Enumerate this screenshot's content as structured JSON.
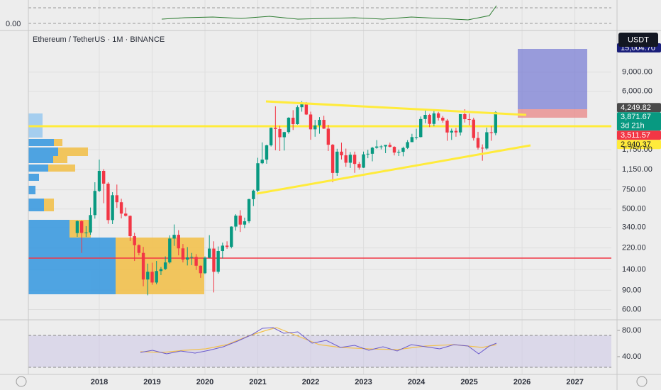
{
  "chart_data": {
    "type": "candlestick",
    "title": "Ethereum / TetherUS · 1M · BINANCE",
    "log_scale": true,
    "grid": true,
    "up_color": "#089981",
    "down_color": "#f23645",
    "xlim": [
      2016.658,
      2027.69
    ],
    "xticks": [
      2018,
      2019,
      2020,
      2021,
      2022,
      2023,
      2024,
      2025,
      2026,
      2027
    ],
    "ylim": [
      49,
      21000
    ],
    "yticks": [
      {
        "value": 9000,
        "label": "9,000.00"
      },
      {
        "value": 6000,
        "label": "6,000.00"
      },
      {
        "value": 1750,
        "label": "1,750.00"
      },
      {
        "value": 1150,
        "label": "1,150.00"
      },
      {
        "value": 750,
        "label": "750.00"
      },
      {
        "value": 500,
        "label": "500.00"
      },
      {
        "value": 340,
        "label": "340.00"
      },
      {
        "value": 220,
        "label": "220.00"
      },
      {
        "value": 140,
        "label": "140.00"
      },
      {
        "value": 90,
        "label": "90.00"
      },
      {
        "value": 60,
        "label": "60.00"
      }
    ],
    "x": [
      2017.583,
      2017.667,
      2017.75,
      2017.833,
      2017.917,
      2018,
      2018.083,
      2018.167,
      2018.25,
      2018.333,
      2018.417,
      2018.5,
      2018.583,
      2018.667,
      2018.75,
      2018.833,
      2018.917,
      2019,
      2019.083,
      2019.167,
      2019.25,
      2019.333,
      2019.417,
      2019.5,
      2019.583,
      2019.667,
      2019.75,
      2019.833,
      2019.917,
      2020,
      2020.083,
      2020.167,
      2020.25,
      2020.333,
      2020.417,
      2020.5,
      2020.583,
      2020.667,
      2020.75,
      2020.833,
      2020.917,
      2021,
      2021.083,
      2021.167,
      2021.25,
      2021.333,
      2021.417,
      2021.5,
      2021.583,
      2021.667,
      2021.75,
      2021.833,
      2021.917,
      2022,
      2022.083,
      2022.167,
      2022.25,
      2022.333,
      2022.417,
      2022.5,
      2022.583,
      2022.667,
      2022.75,
      2022.833,
      2022.917,
      2023,
      2023.083,
      2023.167,
      2023.25,
      2023.333,
      2023.417,
      2023.5,
      2023.583,
      2023.667,
      2023.75,
      2023.833,
      2023.917,
      2024,
      2024.083,
      2024.167,
      2024.25,
      2024.333,
      2024.417,
      2024.5,
      2024.583,
      2024.667,
      2024.75,
      2024.833,
      2024.917,
      2025,
      2025.083,
      2025.167,
      2025.25,
      2025.333,
      2025.417,
      2025.5
    ],
    "open": [
      301,
      387,
      302,
      305,
      440,
      733,
      1118,
      854,
      396,
      669,
      577,
      454,
      433,
      282,
      233,
      198,
      113,
      133,
      106,
      135,
      141,
      162,
      268,
      290,
      218,
      172,
      180,
      182,
      151,
      129,
      179,
      217,
      133,
      206,
      231,
      225,
      345,
      435,
      360,
      386,
      616,
      737,
      1314,
      1418,
      1918,
      2772,
      2706,
      2275,
      2536,
      3433,
      3001,
      4287,
      4631,
      3676,
      2688,
      2919,
      3282,
      2726,
      1941,
      1071,
      1678,
      1553,
      1328,
      1572,
      1295,
      1196,
      1585,
      1605,
      1822,
      1870,
      1874,
      1934,
      1857,
      1645,
      1671,
      1815,
      2052,
      2282,
      2283,
      3340,
      3645,
      3014,
      3763,
      3433,
      3232,
      2513,
      2602,
      2518,
      3704,
      3332,
      3300,
      2237,
      1822,
      1793,
      2528,
      2486
    ],
    "high": [
      393,
      394,
      348,
      516,
      880,
      1420,
      1160,
      880,
      713,
      838,
      621,
      516,
      436,
      303,
      237,
      225,
      158,
      161,
      167,
      147,
      184,
      287,
      361,
      320,
      239,
      224,
      198,
      193,
      152,
      184,
      288,
      253,
      227,
      246,
      253,
      347,
      448,
      488,
      417,
      622,
      752,
      1475,
      2041,
      1944,
      2796,
      4372,
      2890,
      2551,
      3473,
      4027,
      4460,
      4868,
      4778,
      3900,
      3285,
      3479,
      3580,
      2955,
      1972,
      1784,
      2030,
      1790,
      1664,
      1679,
      1352,
      1680,
      1743,
      1857,
      2141,
      1929,
      1930,
      2030,
      1880,
      1752,
      1865,
      2138,
      2445,
      2718,
      3522,
      4093,
      3730,
      3977,
      3887,
      3563,
      3341,
      2730,
      2772,
      3685,
      4109,
      3744,
      3436,
      2549,
      1956,
      2788,
      2880,
      3940
    ],
    "low": [
      278,
      198,
      277,
      290,
      408,
      715,
      565,
      366,
      364,
      512,
      410,
      427,
      254,
      167,
      188,
      98,
      81,
      101,
      102,
      124,
      138,
      158,
      230,
      188,
      162,
      152,
      153,
      138,
      117,
      127,
      177,
      86,
      128,
      176,
      216,
      218,
      317,
      308,
      334,
      371,
      532,
      715,
      1290,
      1300,
      1870,
      1728,
      1700,
      1718,
      2450,
      2651,
      2970,
      3900,
      3640,
      2159,
      2300,
      2450,
      2711,
      1700,
      880,
      1007,
      1422,
      1220,
      1190,
      1073,
      1150,
      1190,
      1461,
      1368,
      1785,
      1760,
      1626,
      1836,
      1550,
      1531,
      1521,
      1775,
      2050,
      2167,
      2265,
      3057,
      2817,
      2865,
      3237,
      3087,
      2111,
      2150,
      2300,
      2357,
      3100,
      2920,
      2120,
      1754,
      1385,
      1750,
      2111,
      2373
    ],
    "close": [
      387,
      302,
      305,
      440,
      733,
      1118,
      854,
      396,
      669,
      577,
      454,
      433,
      282,
      233,
      198,
      113,
      133,
      106,
      135,
      141,
      162,
      268,
      290,
      218,
      172,
      180,
      182,
      151,
      129,
      179,
      217,
      133,
      206,
      231,
      225,
      345,
      435,
      360,
      386,
      616,
      737,
      1314,
      1418,
      1918,
      2772,
      2706,
      2275,
      2536,
      3433,
      3001,
      4287,
      4631,
      3676,
      2688,
      2919,
      3282,
      2726,
      1941,
      1071,
      1678,
      1553,
      1328,
      1572,
      1295,
      1196,
      1585,
      1605,
      1822,
      1870,
      1874,
      1934,
      1857,
      1645,
      1671,
      1815,
      2052,
      2282,
      2283,
      3340,
      3645,
      3014,
      3763,
      3433,
      3232,
      2513,
      2602,
      2518,
      3704,
      3332,
      3300,
      2237,
      1822,
      1793,
      2528,
      2486,
      3871.67
    ],
    "currency_button": "USDT",
    "price_labels": [
      {
        "value": 15004.7,
        "label": "15,004.70",
        "color": "#1a1f7a"
      },
      {
        "value": 4249.82,
        "label": "4,249.82",
        "color": "#4a4a4a"
      },
      {
        "value": 3871.67,
        "label": "3,871.67",
        "color": "#089981"
      },
      {
        "value": 3511.57,
        "label": "3,511.57",
        "color": "#f23645"
      },
      {
        "value": 2940.37,
        "label": "2,940.37",
        "color": "#ffeb3b"
      }
    ],
    "countdown": "3d 21h",
    "top_pane_label": "0.00",
    "rsi_pane": {
      "ylim": [
        13,
        95
      ],
      "yticks": [
        {
          "value": 80,
          "label": "80.00"
        },
        {
          "value": 40,
          "label": "40.00"
        }
      ]
    }
  }
}
